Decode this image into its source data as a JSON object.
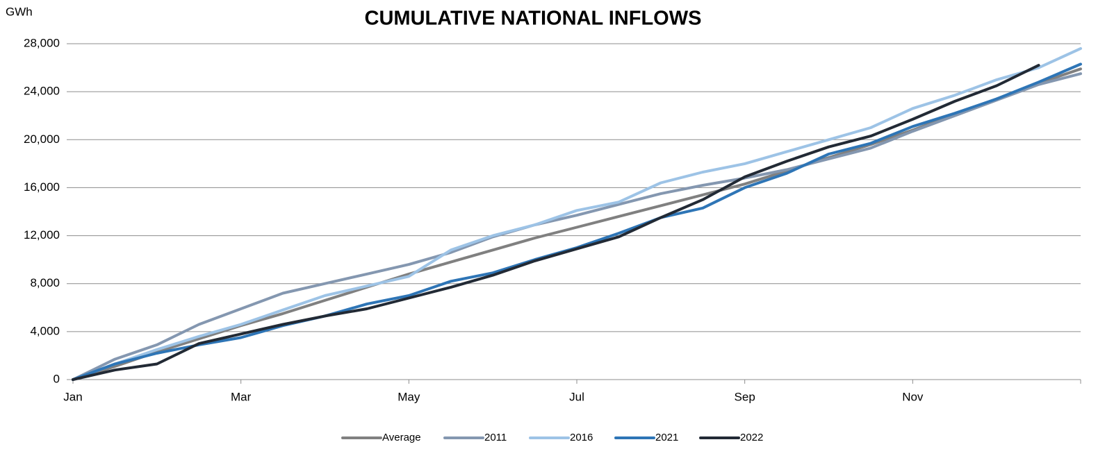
{
  "chart_data": {
    "type": "line",
    "title": "CUMULATIVE NATIONAL INFLOWS",
    "y_label": "GWh",
    "categories": [
      "Jan",
      null,
      null,
      null,
      "Mar",
      null,
      null,
      null,
      "May",
      null,
      null,
      null,
      "Jul",
      null,
      null,
      null,
      "Sep",
      null,
      null,
      null,
      "Nov",
      null,
      null,
      null,
      null
    ],
    "ylim": [
      0,
      28000
    ],
    "yticks": [
      0,
      {
        "value": 4000,
        "label": "4,000"
      },
      {
        "value": 8000,
        "label": "8,000"
      },
      {
        "value": 12000,
        "label": "12,000"
      },
      {
        "value": 16000,
        "label": "16,000"
      },
      {
        "value": 20000,
        "label": "20,000"
      },
      {
        "value": 24000,
        "label": "24,000"
      },
      {
        "value": 28000,
        "label": "28,000"
      }
    ],
    "grid": true,
    "legend": "bottom",
    "series": [
      {
        "name": "Average",
        "color": "#808080",
        "values": [
          0,
          1100,
          2300,
          3400,
          4500,
          5500,
          6600,
          7700,
          8800,
          9800,
          10800,
          11800,
          12700,
          13600,
          14500,
          15400,
          16300,
          17400,
          18500,
          19600,
          20800,
          22100,
          23400,
          24700,
          25900
        ]
      },
      {
        "name": "2011",
        "color": "#8497b0",
        "values": [
          0,
          1700,
          2900,
          4600,
          5900,
          7200,
          8000,
          8800,
          9600,
          10600,
          11900,
          12900,
          13700,
          14600,
          15500,
          16200,
          16800,
          17500,
          18400,
          19300,
          20700,
          22000,
          23300,
          24600,
          25500
        ]
      },
      {
        "name": "2016",
        "color": "#9dc3e6",
        "values": [
          0,
          1300,
          2500,
          3600,
          4600,
          5800,
          7000,
          7800,
          8600,
          10800,
          12000,
          12900,
          14100,
          14800,
          16400,
          17300,
          18000,
          19000,
          20000,
          21000,
          22600,
          23700,
          25000,
          26000,
          27600
        ]
      },
      {
        "name": "2021",
        "color": "#2e75b6",
        "values": [
          0,
          1300,
          2200,
          2900,
          3500,
          4500,
          5300,
          6300,
          7000,
          8200,
          8900,
          10000,
          11000,
          12200,
          13500,
          14300,
          16000,
          17200,
          18800,
          19700,
          21100,
          22200,
          23400,
          24800,
          26300
        ]
      },
      {
        "name": "2022",
        "color": "#222a35",
        "values": [
          0,
          800,
          1300,
          3000,
          3800,
          4600,
          5300,
          5900,
          6800,
          7700,
          8700,
          9900,
          10900,
          11900,
          13500,
          15000,
          16900,
          18200,
          19400,
          20300,
          21700,
          23200,
          24500,
          26200,
          null
        ]
      }
    ]
  }
}
